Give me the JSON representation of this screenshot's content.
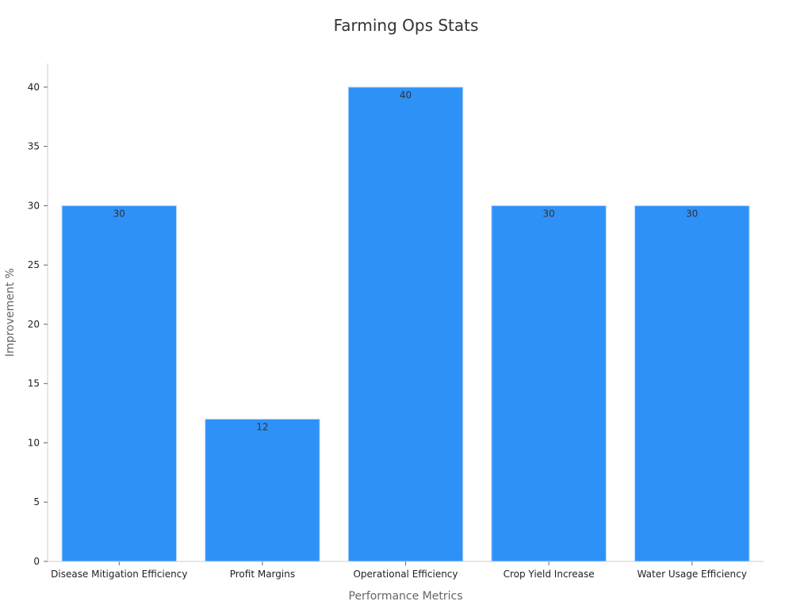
{
  "chart_data": {
    "type": "bar",
    "title": "Farming Ops Stats",
    "xlabel": "Performance Metrics",
    "ylabel": "Improvement %",
    "categories": [
      "Disease Mitigation Efficiency",
      "Profit Margins",
      "Operational Efficiency",
      "Crop Yield Increase",
      "Water Usage Efficiency"
    ],
    "values": [
      30,
      12,
      40,
      30,
      30
    ],
    "ylim": [
      0,
      42
    ],
    "yticks": [
      0,
      5,
      10,
      15,
      20,
      25,
      30,
      35,
      40
    ],
    "grid": false,
    "legend": "none",
    "bar_color": "#2E91F8",
    "bar_edge_color": "#B9D8FB"
  }
}
